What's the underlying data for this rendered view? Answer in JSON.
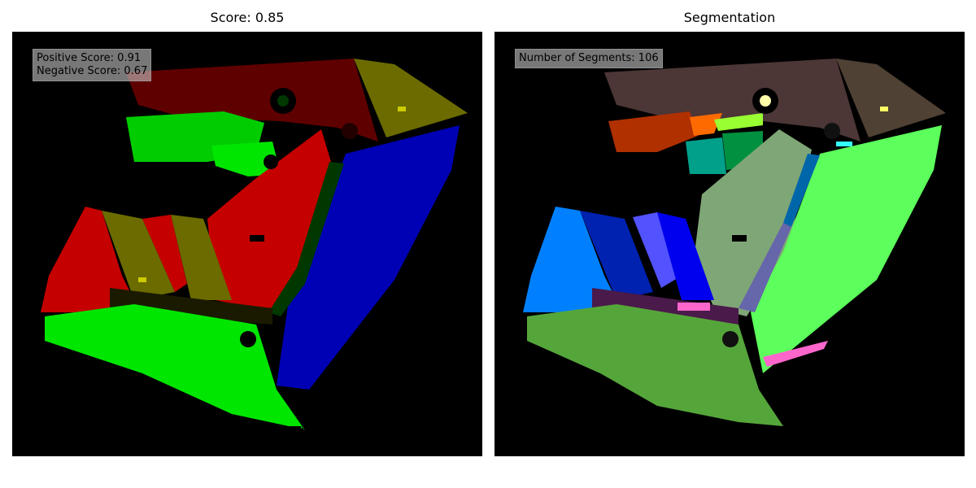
{
  "left_panel": {
    "title": "Score: 0.85",
    "info": {
      "positive_score": "Positive Score: 0.91",
      "negative_score": "Negative Score: 0.67"
    }
  },
  "right_panel": {
    "title": "Segmentation",
    "info": {
      "segments": "Number of Segments: 106"
    }
  },
  "colors": {
    "background": "#000000",
    "dark_red": "#5f0000",
    "olive": "#6b6b00",
    "red": "#c40000",
    "blue": "#0000b4",
    "green": "#00e600",
    "dark_green": "#003800",
    "seg_brown": "#4c3636",
    "seg_olive_brown": "#4f4133",
    "seg_sage": "#7fa676",
    "seg_light_green": "#5cff5c",
    "seg_mid_green": "#55a63a",
    "seg_sky_blue": "#0080ff",
    "seg_navy": "#0022b0",
    "seg_periwinkle": "#5252ff",
    "seg_blue": "#0000ee",
    "seg_teal": "#00a08a",
    "seg_orange": "#b03000",
    "seg_pink": "#ff66cc"
  }
}
